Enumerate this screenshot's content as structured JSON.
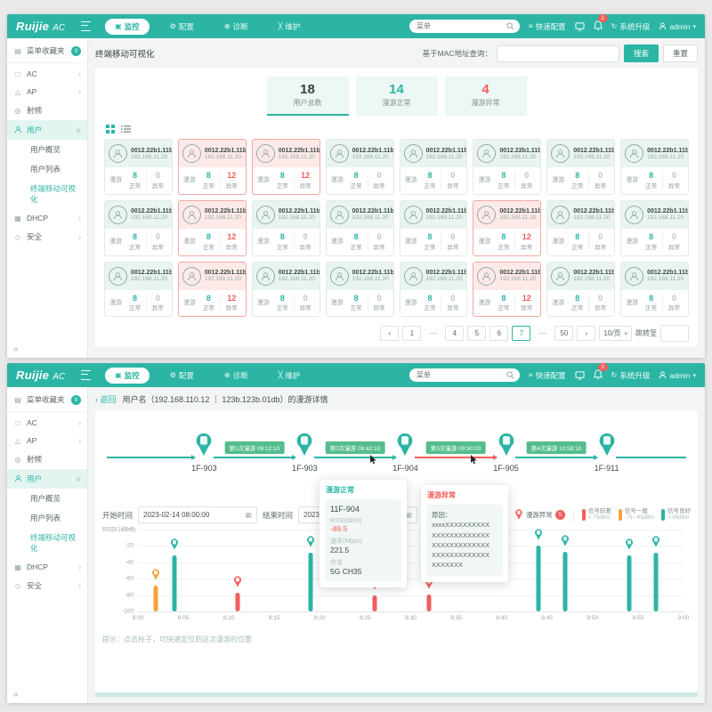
{
  "colors": {
    "teal": "#2cb5a5",
    "red": "#f25e5a",
    "orange": "#f8a23c",
    "badge_green": "#54bd8d",
    "good": "#2cb5a5",
    "fair": "#f8a23c",
    "poor": "#f25e5a"
  },
  "chrome": {
    "logo_main": "Ruijie",
    "logo_sub": "AC",
    "nav": [
      {
        "label": "监控",
        "icon": "▣",
        "active": true
      },
      {
        "label": "配置",
        "icon": "⚙",
        "active": false
      },
      {
        "label": "诊断",
        "icon": "⊕",
        "active": false
      },
      {
        "label": "维护",
        "icon": "╳",
        "active": false
      }
    ],
    "search_placeholder": "菜单",
    "quick_config": "快速配置",
    "notification_count": "2",
    "system_upgrade_icon": "↻",
    "system_upgrade": "系统升级",
    "user_name": "admin",
    "dropdown_caret": "▾",
    "collapse_glyph": "«",
    "sidebar": [
      {
        "label": "菜单收藏夹",
        "icon": "▤",
        "badge": "0"
      },
      {
        "label": "AC",
        "icon": "□",
        "arrow": "›"
      },
      {
        "label": "AP",
        "icon": "△",
        "arrow": "›"
      },
      {
        "label": "射频",
        "icon": "◎"
      },
      {
        "label": "用户",
        "icon": "person",
        "active": true,
        "arrow": "∨",
        "children": [
          {
            "label": "用户概览",
            "active": false
          },
          {
            "label": "用户列表",
            "active": false
          },
          {
            "label": "终端移动可视化",
            "active": true
          }
        ]
      },
      {
        "label": "DHCP",
        "icon": "▦",
        "arrow": "›"
      },
      {
        "label": "安全",
        "icon": "◇",
        "arrow": "›"
      }
    ]
  },
  "visualization_page": {
    "title": "终端移动可视化",
    "mac_query_label": "基于MAC地址查询：",
    "search_button": "搜索",
    "reset_button": "重置",
    "stats": [
      {
        "value": "18",
        "label": "用户总数",
        "color": "#38413f",
        "selected": true
      },
      {
        "value": "14",
        "label": "漫游正常",
        "color": "#2cb5a5",
        "selected": false
      },
      {
        "value": "4",
        "label": "漫游异常",
        "color": "#f25e5a",
        "selected": false
      }
    ],
    "card_template": {
      "mac": "0012.22b1.11bc",
      "ip": "192.168.11.20",
      "roam_label": "漫游",
      "normal_count": "8",
      "normal_label": "正常",
      "abnormal_label": "异常",
      "abnormal_count_when_normal": "0",
      "abnormal_count_when_abnormal": "12"
    },
    "cards_abnormal_flags": [
      false,
      true,
      true,
      false,
      false,
      false,
      false,
      false,
      false,
      true,
      false,
      false,
      false,
      true,
      false,
      false,
      false,
      true,
      false,
      false,
      false,
      true,
      false,
      false
    ],
    "pagination": {
      "items": [
        {
          "text": "‹",
          "kind": "nav"
        },
        {
          "text": "1",
          "kind": "page"
        },
        {
          "text": "···",
          "kind": "dots"
        },
        {
          "text": "4",
          "kind": "page"
        },
        {
          "text": "5",
          "kind": "page"
        },
        {
          "text": "6",
          "kind": "page"
        },
        {
          "text": "7",
          "kind": "page",
          "current": true
        },
        {
          "text": "···",
          "kind": "dots"
        },
        {
          "text": "50",
          "kind": "page"
        },
        {
          "text": "›",
          "kind": "nav"
        }
      ],
      "page_size": "10/页",
      "jump_label": "跳转至"
    }
  },
  "roam_detail_page": {
    "back_label": "返回",
    "title": "用户名（192.168.110.12 ｜ 123b.123b.01db）的漫游详情",
    "timeline": {
      "nodes": [
        "1F-903",
        "1F-903",
        "1F-904",
        "1F-905",
        "1F-911"
      ],
      "events": [
        {
          "label": "第1次漫游 09:12:10",
          "abnormal": false
        },
        {
          "label": "第2次漫游 09:42:10",
          "abnormal": false
        },
        {
          "label": "第3次漫游 09:50:00",
          "abnormal": true
        },
        {
          "label": "第4次漫游 10:58:10",
          "abnormal": false
        }
      ]
    },
    "tooltip_normal": {
      "title": "漫游正常",
      "ap": "11F-904",
      "rssi_label": "RSSI(dBm)",
      "rssi_value": "-89.5",
      "rate_label": "速率(Mbps)",
      "rate_value": "221.5",
      "channel_label": "信道",
      "channel_value": "5G CH35"
    },
    "tooltip_abnormal": {
      "title": "漫游异常",
      "reason_label": "原因：",
      "reason_lines": [
        "xxxxXXXXXXXXXX",
        "XXXXXXXXXXXXX",
        "XXXXXXXXXXXXX",
        "XXXXXXXXXXXXX",
        "XXXXXXX"
      ]
    },
    "filters": {
      "start_label": "开始时间",
      "start_value": "2023-02-14  08:00:00",
      "end_label": "结束时间",
      "end_value": "2023-02-14  09:00:00"
    },
    "legend": {
      "roam_normal_label": "漫游正常",
      "roam_normal_count": "5",
      "roam_abnormal_label": "漫游异常",
      "roam_abnormal_count": "5",
      "signal": [
        {
          "label": "信号较差",
          "range": "<-75dBm",
          "color": "#f25e5a"
        },
        {
          "label": "信号一般",
          "range": "-75~-65dBm",
          "color": "#f8a23c"
        },
        {
          "label": "信号良好",
          "range": ">-65dBm",
          "color": "#2cb5a5"
        }
      ]
    },
    "chart_data": {
      "type": "bar",
      "title": "",
      "ylabel": "RSSI (dBm)",
      "ylim": [
        -100,
        0
      ],
      "yticks": [
        0,
        -20,
        -40,
        -60,
        -80,
        -100
      ],
      "xticks": [
        "8:00",
        "8:05",
        "8:10",
        "8:15",
        "8:20",
        "8:25",
        "8:30",
        "8:35",
        "8:40",
        "8:45",
        "8:50",
        "8:55",
        "9:00"
      ],
      "x_range_minutes": [
        0,
        60
      ],
      "points": [
        {
          "minute": 2,
          "rssi": -68,
          "quality": "fair"
        },
        {
          "minute": 4,
          "rssi": -32,
          "quality": "good"
        },
        {
          "minute": 11,
          "rssi": -77,
          "quality": "poor"
        },
        {
          "minute": 19,
          "rssi": -28,
          "quality": "good"
        },
        {
          "minute": 26,
          "rssi": -80,
          "quality": "poor"
        },
        {
          "minute": 32,
          "rssi": -79,
          "quality": "poor"
        },
        {
          "minute": 44,
          "rssi": -20,
          "quality": "good"
        },
        {
          "minute": 47,
          "rssi": -27,
          "quality": "good"
        },
        {
          "minute": 54,
          "rssi": -31,
          "quality": "good"
        },
        {
          "minute": 57,
          "rssi": -28,
          "quality": "good"
        }
      ],
      "grid": true,
      "legend_position": "top-right"
    },
    "hint": "提示：点击柱子，可快速定位到这次漫游的位置"
  }
}
